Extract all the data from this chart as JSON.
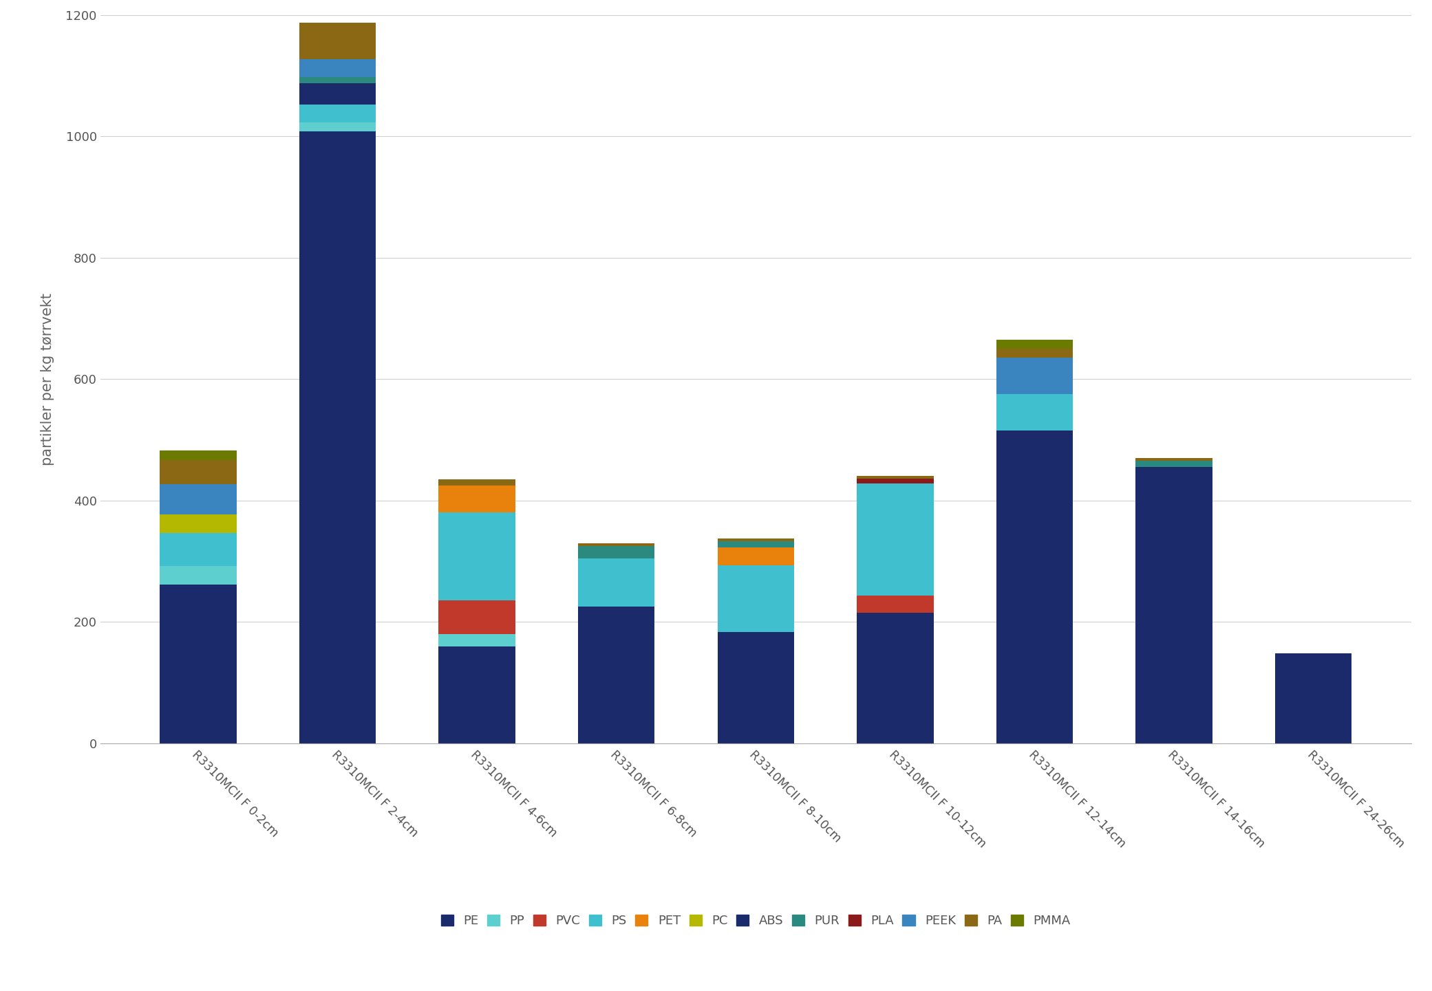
{
  "categories": [
    "R3310MCII F 0-2cm",
    "R3310MCII F 2-4cm",
    "R3310MCII F 4-6cm",
    "R3310MCII F 6-8cm",
    "R3310MCII F 8-10cm",
    "R3310MCII F 10-12cm",
    "R3310MCII F 12-14cm",
    "R3310MCII F 14-16cm",
    "R3310MCII F 24-26cm"
  ],
  "series_order": [
    "PE",
    "PP",
    "PVC",
    "PS",
    "PET",
    "PC",
    "ABS",
    "PUR",
    "PLA",
    "PEEK",
    "PA",
    "PMMA"
  ],
  "series": {
    "PE": [
      262,
      1008,
      160,
      225,
      183,
      215,
      515,
      455,
      148
    ],
    "PP": [
      30,
      15,
      20,
      0,
      0,
      0,
      0,
      0,
      0
    ],
    "PVC": [
      0,
      0,
      55,
      0,
      0,
      28,
      0,
      0,
      0
    ],
    "PS": [
      55,
      30,
      145,
      80,
      110,
      185,
      60,
      0,
      0
    ],
    "PET": [
      0,
      0,
      45,
      0,
      30,
      0,
      0,
      0,
      0
    ],
    "PC": [
      30,
      0,
      0,
      0,
      0,
      0,
      0,
      0,
      0
    ],
    "ABS": [
      0,
      35,
      0,
      0,
      0,
      0,
      0,
      0,
      0
    ],
    "PUR": [
      0,
      10,
      0,
      20,
      10,
      0,
      0,
      10,
      0
    ],
    "PLA": [
      0,
      0,
      0,
      0,
      0,
      8,
      0,
      0,
      0
    ],
    "PEEK": [
      50,
      30,
      0,
      0,
      0,
      0,
      60,
      0,
      0
    ],
    "PA": [
      40,
      60,
      10,
      5,
      5,
      5,
      15,
      5,
      0
    ],
    "PMMA": [
      15,
      0,
      0,
      0,
      0,
      0,
      15,
      0,
      0
    ]
  },
  "colors": {
    "PE": "#1b2a6b",
    "PP": "#5ecfcf",
    "PVC": "#c0392b",
    "PS": "#40bfcf",
    "PET": "#e8820c",
    "PC": "#b5b800",
    "ABS": "#1b2a6b",
    "PUR": "#2a8a80",
    "PLA": "#8b1a1a",
    "PEEK": "#3a85c0",
    "PA": "#8b6914",
    "PMMA": "#6b7a00"
  },
  "ylabel": "partikler per kg tørrvekt",
  "ylim": [
    0,
    1200
  ],
  "yticks": [
    0,
    200,
    400,
    600,
    800,
    1000,
    1200
  ],
  "background_color": "#ffffff",
  "grid_color": "#d0d0d0"
}
